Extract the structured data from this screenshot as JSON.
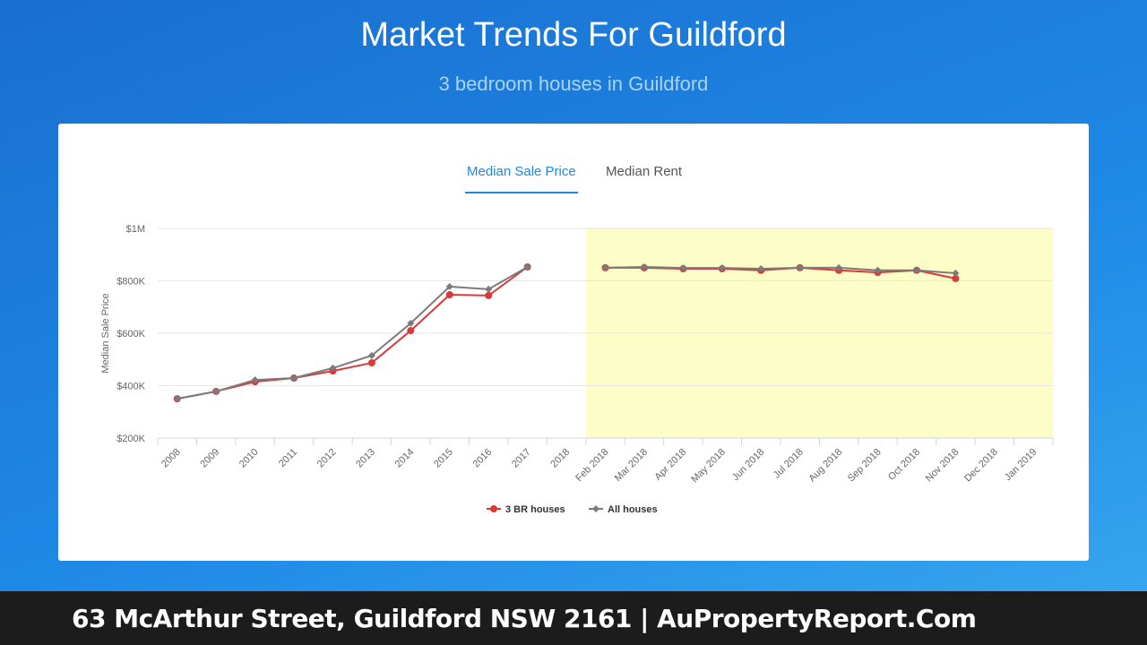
{
  "header": {
    "title": "Market Trends For Guildford",
    "subtitle": "3 bedroom houses in Guildford"
  },
  "tabs": [
    {
      "label": "Median Sale Price",
      "active": true
    },
    {
      "label": "Median Rent",
      "active": false
    }
  ],
  "chart_data": {
    "type": "line",
    "y_label": "Median Sale Price",
    "categories": [
      "2008",
      "2009",
      "2010",
      "2011",
      "2012",
      "2013",
      "2014",
      "2015",
      "2016",
      "2017",
      "2018",
      "Feb 2018",
      "Mar 2018",
      "Apr 2018",
      "May 2018",
      "Jun 2018",
      "Jul 2018",
      "Aug 2018",
      "Sep 2018",
      "Oct 2018",
      "Nov 2018",
      "Dec 2018",
      "Jan 2019"
    ],
    "series": [
      {
        "name": "3 BR houses",
        "color": "#d9393b",
        "values": [
          350000,
          378000,
          415000,
          429000,
          456000,
          487000,
          610000,
          747000,
          744000,
          853000,
          null,
          850000,
          850000,
          846000,
          846000,
          840000,
          850000,
          840000,
          832000,
          840000,
          809000,
          null,
          null
        ]
      },
      {
        "name": "All houses",
        "color": "#7b7b7b",
        "values": [
          350000,
          378000,
          422000,
          429000,
          467000,
          515000,
          638000,
          778000,
          768000,
          853000,
          null,
          850000,
          853000,
          849000,
          849000,
          846000,
          850000,
          850000,
          840000,
          840000,
          829000,
          null,
          null
        ]
      }
    ],
    "ylim": [
      200000,
      1000000
    ],
    "yticks": [
      {
        "value": 200000,
        "label": "$200K"
      },
      {
        "value": 400000,
        "label": "$400K"
      },
      {
        "value": 600000,
        "label": "$600K"
      },
      {
        "value": 800000,
        "label": "$800K"
      },
      {
        "value": 1000000,
        "label": "$1M"
      }
    ],
    "grid": true,
    "highlight": {
      "from": "Feb 2018",
      "to": "Jan 2019",
      "color": "#fdfdc7"
    },
    "legend": "bottom"
  },
  "footer": {
    "text": "63 McArthur Street, Guildford NSW 2161 | AuPropertyReport.Com"
  }
}
